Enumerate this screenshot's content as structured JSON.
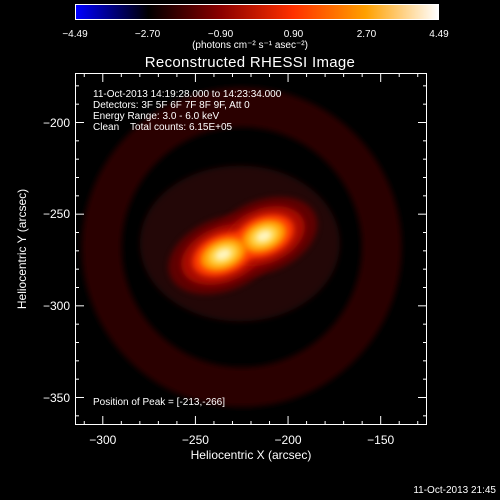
{
  "chart_data": {
    "type": "heatmap",
    "title": "Reconstructed RHESSI Image",
    "xlabel": "Heliocentric X (arcsec)",
    "ylabel": "Heliocentric Y (arcsec)",
    "xlim": [
      -315,
      -125
    ],
    "ylim": [
      -365,
      -173
    ],
    "x_ticks": [
      -300,
      -250,
      -200,
      -150
    ],
    "y_ticks": [
      -200,
      -250,
      -300,
      -350
    ],
    "x_tick_labels": [
      "−300",
      "−250",
      "−200",
      "−150"
    ],
    "y_tick_labels": [
      "−200",
      "−250",
      "−300",
      "−350"
    ],
    "colorbar": {
      "range": [
        -4.49,
        4.49
      ],
      "tick_labels": [
        "−4.49",
        "−2.70",
        "−0.90",
        "0.90",
        "2.70",
        "4.49"
      ],
      "tick_values": [
        -4.49,
        -2.7,
        -0.9,
        0.9,
        2.7,
        4.49
      ],
      "unit_label": "(photons cm⁻² s⁻¹ asec⁻²)",
      "colormap": [
        "#0000ff",
        "#000000",
        "#8a0000",
        "#ff3000",
        "#ffa000",
        "#ffffff"
      ]
    },
    "annotations": {
      "time_range": "11-Oct-2013 14:19:28.000 to 14:23:34.000",
      "detectors": "Detectors: 3F 5F 6F 7F 8F 9F, Att 0",
      "energy_range": "Energy Range: 3.0 - 6.0 keV",
      "algorithm": "Clean    Total counts: 6.15E+05",
      "peak_position": "Position of Peak = [-213,-266]"
    },
    "source": {
      "peak_x": -213,
      "peak_y": -266,
      "components": [
        {
          "x": -235,
          "y": -272,
          "amplitude": 4.2,
          "sigma_x": 11,
          "sigma_y": 7
        },
        {
          "x": -213,
          "y": -262,
          "amplitude": 4.49,
          "sigma_x": 10,
          "sigma_y": 6.5
        }
      ]
    },
    "timestamp": "11-Oct-2013 21:45"
  }
}
